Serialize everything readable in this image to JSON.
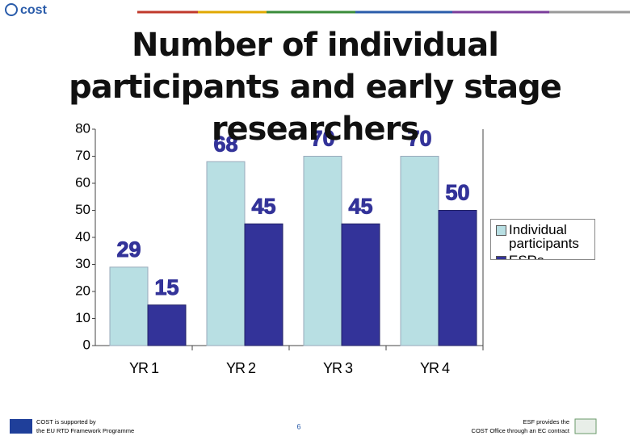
{
  "logo": "cost",
  "chart_data": {
    "type": "bar",
    "title": "Number of individual participants and early stage researchers",
    "categories": [
      "YR 1",
      "YR 2",
      "YR 3",
      "YR 4"
    ],
    "series": [
      {
        "name": "Individual participants",
        "color": "#b8dfe3",
        "values": [
          29,
          68,
          70,
          70
        ]
      },
      {
        "name": "ESRs",
        "color": "#333399",
        "values": [
          15,
          45,
          45,
          50
        ]
      }
    ],
    "ylim": [
      0,
      80
    ],
    "yticks": [
      0,
      10,
      20,
      30,
      40,
      50,
      60,
      70,
      80
    ],
    "grid": false,
    "legend": "right"
  },
  "footer": {
    "left": [
      "COST is supported by",
      "the EU RTD Framework Programme"
    ],
    "page": "6",
    "right": [
      "ESF provides the",
      "COST Office through an EC contract"
    ]
  }
}
